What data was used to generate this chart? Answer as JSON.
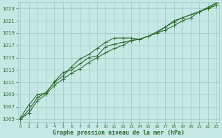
{
  "line1_y": [
    1005.2,
    1007.3,
    1009.0,
    1009.2,
    1011.1,
    1012.6,
    1013.0,
    1014.0,
    1015.0,
    1015.3,
    1016.8,
    1017.2,
    1017.5,
    1017.8,
    1018.0,
    1018.5,
    1019.0,
    1019.5,
    1020.2,
    1021.0,
    1021.5,
    1022.5,
    1023.0,
    1023.5
  ],
  "line2_y": [
    1005.0,
    1006.5,
    1008.5,
    1009.3,
    1011.0,
    1012.0,
    1013.5,
    1014.8,
    1015.5,
    1016.5,
    1017.5,
    1018.2,
    1018.2,
    1018.2,
    1018.0,
    1018.5,
    1019.2,
    1020.0,
    1021.0,
    1021.5,
    1022.0,
    1022.5,
    1023.2,
    1024.0
  ],
  "line3_y": [
    1005.0,
    1006.0,
    1008.0,
    1009.0,
    1010.5,
    1011.5,
    1012.5,
    1013.2,
    1014.2,
    1015.0,
    1015.8,
    1016.5,
    1017.0,
    1017.8,
    1018.0,
    1018.5,
    1019.0,
    1020.0,
    1020.8,
    1021.5,
    1022.0,
    1022.5,
    1023.0,
    1023.8
  ],
  "x": [
    0,
    1,
    2,
    3,
    4,
    5,
    6,
    7,
    8,
    9,
    10,
    11,
    12,
    13,
    14,
    15,
    16,
    17,
    18,
    19,
    20,
    21,
    22,
    23
  ],
  "ylim": [
    1004.5,
    1024.0
  ],
  "yticks": [
    1005,
    1007,
    1009,
    1011,
    1013,
    1015,
    1017,
    1019,
    1021,
    1023
  ],
  "xticks": [
    0,
    1,
    2,
    3,
    4,
    5,
    6,
    7,
    8,
    9,
    10,
    11,
    12,
    13,
    14,
    15,
    16,
    17,
    18,
    19,
    20,
    21,
    22,
    23
  ],
  "line_color": "#2d6a2d",
  "bg_color": "#c5e8e5",
  "grid_color": "#9dc8c4",
  "xlabel": "Graphe pression niveau de la mer (hPa)",
  "xlabel_color": "#2d6a2d",
  "tick_color": "#2d6a2d",
  "markersize": 2.0,
  "linewidth": 0.8
}
